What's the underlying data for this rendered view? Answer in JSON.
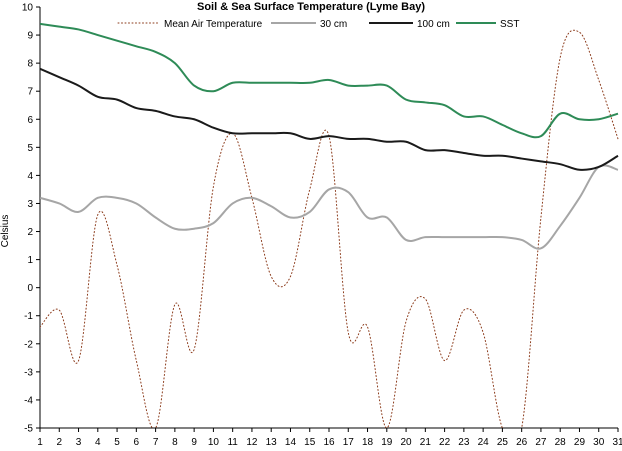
{
  "chart_data": {
    "type": "line",
    "title": "Soil & Sea Surface Temperature (Lyme Bay)",
    "xlabel": "",
    "ylabel": "Celsius",
    "ylim": [
      -5,
      10
    ],
    "yticks": [
      -5,
      -4,
      -3,
      -2,
      -1,
      0,
      1,
      2,
      3,
      4,
      5,
      6,
      7,
      8,
      9,
      10
    ],
    "categories": [
      "1",
      "2",
      "3",
      "4",
      "5",
      "6",
      "7",
      "8",
      "9",
      "10",
      "11",
      "12",
      "13",
      "14",
      "15",
      "16",
      "17",
      "18",
      "19",
      "20",
      "21",
      "22",
      "23",
      "24",
      "25",
      "26",
      "27",
      "28",
      "29",
      "30",
      "31"
    ],
    "grid": false,
    "legend": "top",
    "series": [
      {
        "name": "Mean Air Temperature",
        "color": "#8b3a1a",
        "dash": "dotted",
        "values": [
          -1.4,
          -0.8,
          -2.6,
          2.6,
          0.8,
          -2.6,
          -5.0,
          -0.6,
          -2.2,
          3.6,
          5.5,
          3.2,
          0.4,
          0.4,
          3.5,
          5.4,
          -1.6,
          -1.4,
          -5.0,
          -1.2,
          -0.4,
          -2.6,
          -0.8,
          -1.6,
          -5.0,
          -5.0,
          2.5,
          8.2,
          9.1,
          7.4,
          5.3
        ]
      },
      {
        "name": "30 cm",
        "color": "#a6a6a6",
        "dash": "solid",
        "values": [
          3.2,
          3.0,
          2.7,
          3.2,
          3.2,
          3.0,
          2.5,
          2.1,
          2.1,
          2.3,
          3.0,
          3.2,
          2.9,
          2.5,
          2.7,
          3.5,
          3.4,
          2.5,
          2.5,
          1.7,
          1.8,
          1.8,
          1.8,
          1.8,
          1.8,
          1.7,
          1.4,
          2.2,
          3.2,
          4.3,
          4.2
        ]
      },
      {
        "name": "100 cm",
        "color": "#1a1a1a",
        "dash": "solid",
        "values": [
          7.8,
          7.5,
          7.2,
          6.8,
          6.7,
          6.4,
          6.3,
          6.1,
          6.0,
          5.7,
          5.5,
          5.5,
          5.5,
          5.5,
          5.3,
          5.4,
          5.3,
          5.3,
          5.2,
          5.2,
          4.9,
          4.9,
          4.8,
          4.7,
          4.7,
          4.6,
          4.5,
          4.4,
          4.2,
          4.3,
          4.7
        ]
      },
      {
        "name": "SST",
        "color": "#2e8b57",
        "dash": "solid",
        "values": [
          9.4,
          9.3,
          9.2,
          9.0,
          8.8,
          8.6,
          8.4,
          8.0,
          7.2,
          7.0,
          7.3,
          7.3,
          7.3,
          7.3,
          7.3,
          7.4,
          7.2,
          7.2,
          7.2,
          6.7,
          6.6,
          6.5,
          6.1,
          6.1,
          5.8,
          5.5,
          5.4,
          6.2,
          6.0,
          6.0,
          6.2
        ]
      }
    ]
  }
}
